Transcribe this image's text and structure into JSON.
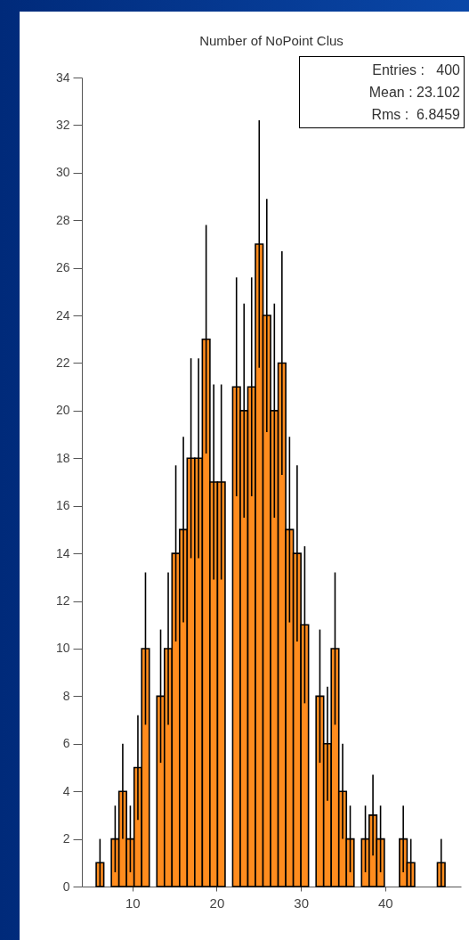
{
  "chart_data": {
    "type": "histogram",
    "title": "Number of NoPoint Clus",
    "bins": [
      5.7,
      6.6,
      7.5,
      8.4,
      9.3,
      10.2,
      11.1,
      12.0,
      12.9,
      13.8,
      14.7,
      15.6,
      16.5,
      17.4,
      18.3,
      19.2,
      20.1,
      21.0,
      21.9,
      22.8,
      23.7,
      24.6,
      25.5,
      26.4,
      27.3,
      28.2,
      29.1,
      30.0,
      30.9,
      31.8,
      32.7,
      33.6,
      34.5,
      35.4,
      36.3,
      37.2,
      38.1,
      39.0,
      39.9,
      40.8,
      41.7,
      42.6,
      43.5,
      44.4,
      45.3,
      46.2,
      47.1
    ],
    "values": [
      1,
      0,
      2,
      4,
      2,
      5,
      10,
      0,
      8,
      10,
      14,
      15,
      18,
      18,
      23,
      17,
      17,
      0,
      21,
      20,
      21,
      27,
      24,
      20,
      22,
      15,
      14,
      11,
      0,
      8,
      6,
      10,
      4,
      2,
      0,
      2,
      3,
      2,
      0,
      0,
      2,
      1,
      0,
      0,
      0,
      1
    ],
    "errors": [
      1,
      null,
      1.4,
      2,
      1.4,
      2.2,
      3.2,
      null,
      2.8,
      3.2,
      3.7,
      3.9,
      4.2,
      4.2,
      4.8,
      4.1,
      4.1,
      null,
      4.6,
      4.5,
      4.6,
      5.2,
      4.9,
      4.5,
      4.7,
      3.9,
      3.7,
      3.3,
      null,
      2.8,
      2.4,
      3.2,
      2,
      1.4,
      null,
      1.4,
      1.7,
      1.4,
      null,
      null,
      1.4,
      1,
      null,
      null,
      null,
      1
    ],
    "color": "#ff8c1e",
    "xlim": [
      4,
      49
    ],
    "xticks": [
      10,
      20,
      30,
      40
    ],
    "ylim": [
      0,
      34
    ],
    "yticks": [
      0,
      2,
      4,
      6,
      8,
      10,
      12,
      14,
      16,
      18,
      20,
      22,
      24,
      26,
      28,
      30,
      32,
      34
    ],
    "grid": false,
    "annotations": [
      "Entries :   400",
      "Mean : 23.102",
      "Rms :  6.8459"
    ]
  }
}
